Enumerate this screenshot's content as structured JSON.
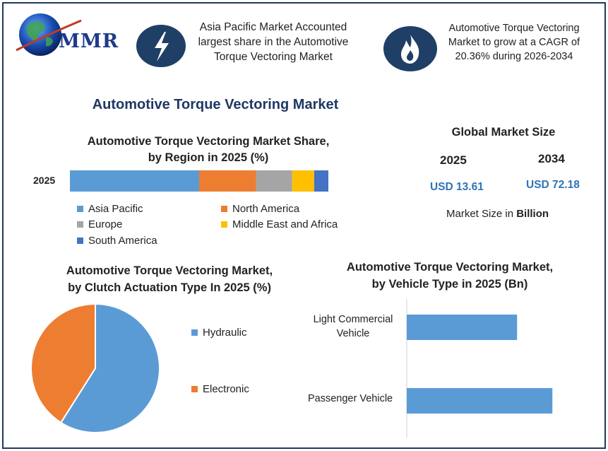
{
  "logo": {
    "text": "MMR"
  },
  "header": {
    "info_left": "Asia Pacific Market Accounted largest share in the Automotive Torque Vectoring Market",
    "info_right": "Automotive Torque Vectoring Market to grow at a CAGR of 20.36% during 2026-2034",
    "icon_left": "lightning-icon",
    "icon_right": "flame-icon"
  },
  "main_title": "Automotive Torque Vectoring Market",
  "region_chart": {
    "title_line1": "Automotive Torque Vectoring Market Share,",
    "title_line2": "by Region in 2025 (%)",
    "row_label": "2025",
    "legend": [
      "Asia Pacific",
      "North America",
      "Europe",
      "Middle East and Africa",
      "South America"
    ]
  },
  "market_size": {
    "title": "Global Market Size",
    "year_start": "2025",
    "year_end": "2034",
    "value_start": "USD 13.61",
    "value_end": "USD 72.18",
    "note_prefix": "Market Size in ",
    "note_bold": "Billion"
  },
  "clutch_chart": {
    "title_line1": "Automotive Torque Vectoring Market,",
    "title_line2": "by Clutch Actuation Type In 2025 (%)",
    "legend": [
      "Hydraulic",
      "Electronic"
    ]
  },
  "vehicle_chart": {
    "title_line1": "Automotive Torque Vectoring Market,",
    "title_line2": "by Vehicle Type in 2025 (Bn)",
    "label_lcv_1": "Light Commercial",
    "label_lcv_2": "Vehicle",
    "label_pv": "Passenger Vehicle"
  },
  "chart_data": [
    {
      "type": "bar",
      "orientation": "horizontal-stacked",
      "categories": [
        "2025"
      ],
      "series": [
        {
          "name": "Asia Pacific",
          "values": [
            50
          ],
          "color": "#5b9bd5"
        },
        {
          "name": "North America",
          "values": [
            22
          ],
          "color": "#ed7d31"
        },
        {
          "name": "Europe",
          "values": [
            14
          ],
          "color": "#a5a5a5"
        },
        {
          "name": "Middle East and Africa",
          "values": [
            8.5
          ],
          "color": "#ffc000"
        },
        {
          "name": "South America",
          "values": [
            5.5
          ],
          "color": "#4472c4"
        }
      ],
      "title": "Automotive Torque Vectoring Market Share, by Region in 2025 (%)",
      "legend": "bottom"
    },
    {
      "type": "pie",
      "categories": [
        "Hydraulic",
        "Electronic"
      ],
      "values": [
        59,
        41
      ],
      "colors": [
        "#5b9bd5",
        "#ed7d31"
      ],
      "title": "Automotive Torque Vectoring Market, by Clutch Actuation Type In 2025 (%)",
      "legend": "right"
    },
    {
      "type": "bar",
      "orientation": "horizontal",
      "categories": [
        "Light Commercial Vehicle",
        "Passenger Vehicle"
      ],
      "values": [
        5.0,
        6.6
      ],
      "color": "#5b9bd5",
      "title": "Automotive Torque Vectoring Market, by Vehicle Type in 2025 (Bn)",
      "xlim": [
        0,
        8
      ]
    }
  ]
}
